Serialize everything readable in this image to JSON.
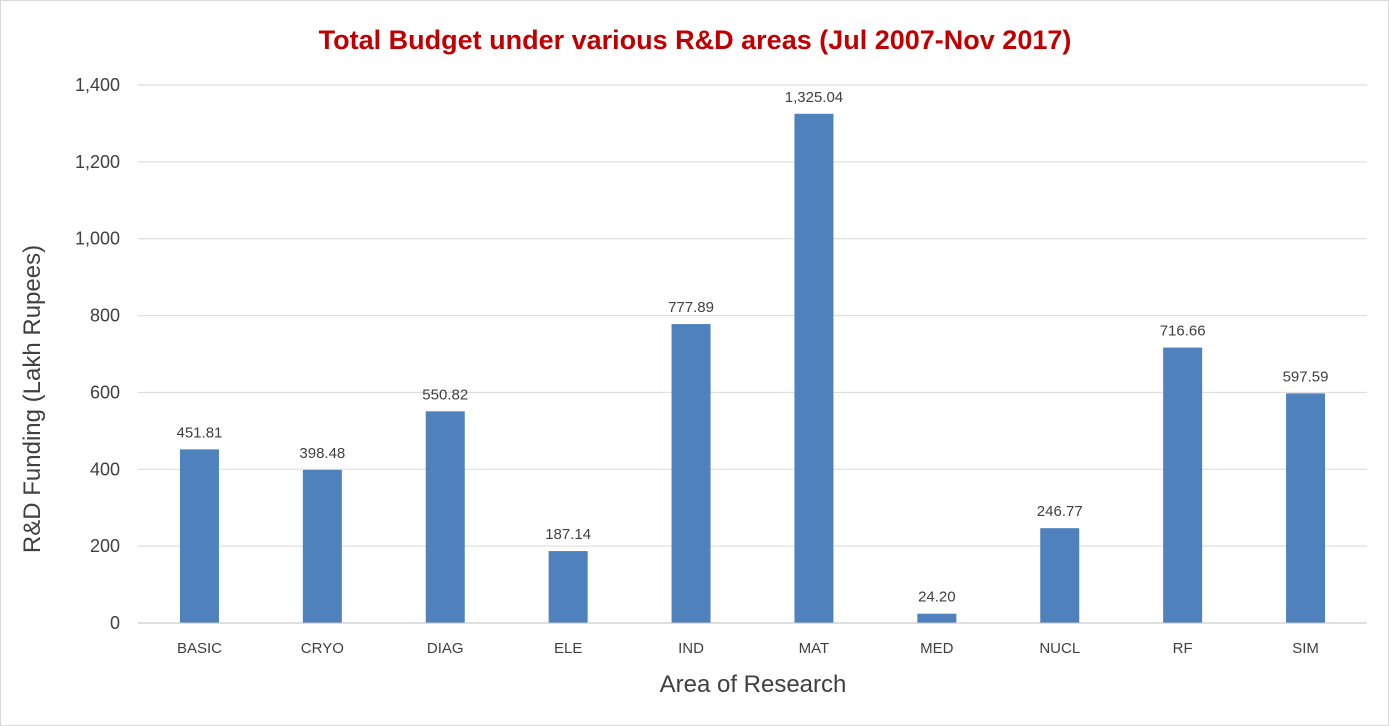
{
  "chart_data": {
    "type": "bar",
    "title": "Total Budget under various R&D areas (Jul 2007-Nov 2017)",
    "xlabel": "Area of Research",
    "ylabel": "R&D Funding (Lakh Rupees)",
    "categories": [
      "BASIC",
      "CRYO",
      "DIAG",
      "ELE",
      "IND",
      "MAT",
      "MED",
      "NUCL",
      "RF",
      "SIM"
    ],
    "values": [
      451.81,
      398.48,
      550.82,
      187.14,
      777.89,
      1325.04,
      24.2,
      246.77,
      716.66,
      597.59
    ],
    "data_labels": [
      "451.81",
      "398.48",
      "550.82",
      "187.14",
      "777.89",
      "1,325.04",
      "24.20",
      "246.77",
      "716.66",
      "597.59"
    ],
    "ylim": [
      0,
      1400
    ],
    "yticks": [
      0,
      200,
      400,
      600,
      800,
      1000,
      1200,
      1400
    ],
    "ytick_labels": [
      "0",
      "200",
      "400",
      "600",
      "800",
      "1,000",
      "1,200",
      "1,400"
    ],
    "grid": true,
    "legend": "none",
    "bar_color": "#4f81bd",
    "title_color": "#c00000"
  }
}
